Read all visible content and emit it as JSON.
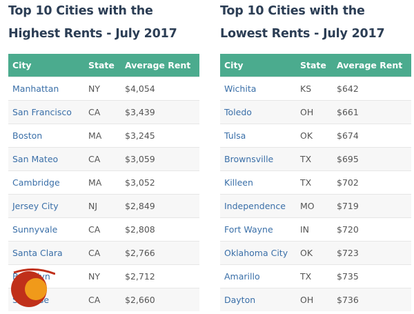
{
  "highest": {
    "title": "Top 10 Cities with the Highest Rents - July 2017",
    "headers": [
      "City",
      "State",
      "Average Rent"
    ],
    "rows": [
      [
        "Manhattan",
        "NY",
        "$4,054"
      ],
      [
        "San Francisco",
        "CA",
        "$3,439"
      ],
      [
        "Boston",
        "MA",
        "$3,245"
      ],
      [
        "San Mateo",
        "CA",
        "$3,059"
      ],
      [
        "Cambridge",
        "MA",
        "$3,052"
      ],
      [
        "Jersey City",
        "NJ",
        "$2,849"
      ],
      [
        "Sunnyvale",
        "CA",
        "$2,808"
      ],
      [
        "Santa Clara",
        "CA",
        "$2,766"
      ],
      [
        "Brooklyn",
        "NY",
        "$2,712"
      ],
      [
        "San Jose",
        "CA",
        "$2,660"
      ]
    ]
  },
  "lowest": {
    "title": "Top 10 Cities with the Lowest Rents - July 2017",
    "headers": [
      "City",
      "State",
      "Average Rent"
    ],
    "rows": [
      [
        "Wichita",
        "KS",
        "$642"
      ],
      [
        "Toledo",
        "OH",
        "$661"
      ],
      [
        "Tulsa",
        "OK",
        "$674"
      ],
      [
        "Brownsville",
        "TX",
        "$695"
      ],
      [
        "Killeen",
        "TX",
        "$702"
      ],
      [
        "Independence",
        "MO",
        "$719"
      ],
      [
        "Fort Wayne",
        "IN",
        "$720"
      ],
      [
        "Oklahoma City",
        "OK",
        "$723"
      ],
      [
        "Amarillo",
        "TX",
        "$735"
      ],
      [
        "Dayton",
        "OH",
        "$736"
      ]
    ]
  },
  "colors": {
    "header": "#4bab8e",
    "link": "#3a6fa8",
    "title": "#2c3e55"
  }
}
